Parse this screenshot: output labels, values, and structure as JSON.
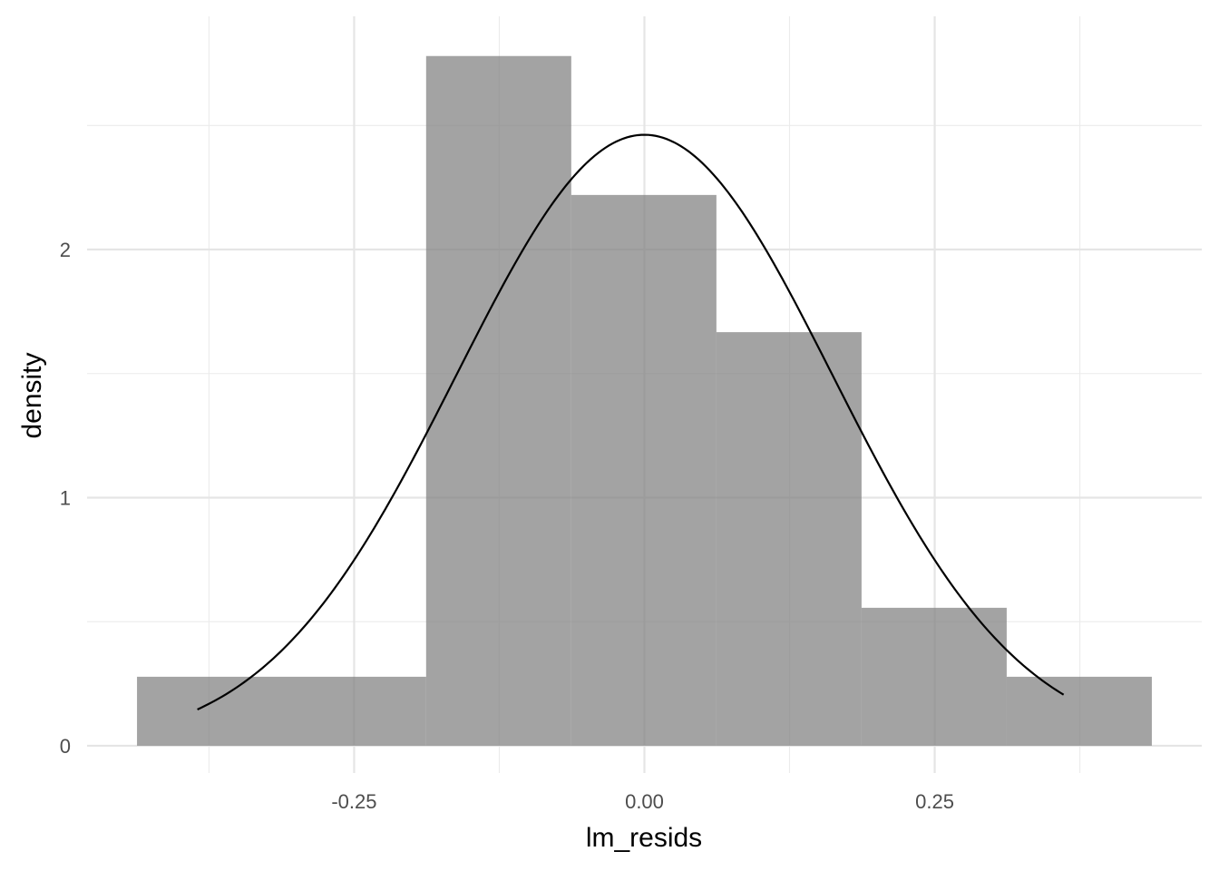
{
  "chart_data": {
    "type": "bar",
    "subtype": "histogram-with-normal-density-curve",
    "title": "",
    "xlabel": "lm_resids",
    "ylabel": "density",
    "xlim": [
      -0.48,
      0.48
    ],
    "ylim": [
      -0.11,
      2.94
    ],
    "x_major_ticks": [
      -0.25,
      0.0,
      0.25
    ],
    "x_tick_labels": [
      "-0.25",
      "0.00",
      "0.25"
    ],
    "x_minor_ticks": [
      -0.375,
      -0.125,
      0.125,
      0.375
    ],
    "y_major_ticks": [
      0,
      1,
      2
    ],
    "y_tick_labels": [
      "0",
      "1",
      "2"
    ],
    "y_minor_ticks": [
      0.5,
      1.5,
      2.5
    ],
    "grid": true,
    "bins": [
      {
        "x0": -0.437,
        "x1": -0.188,
        "density": 0.278
      },
      {
        "x0": -0.188,
        "x1": -0.063,
        "density": 2.78
      },
      {
        "x0": -0.063,
        "x1": 0.062,
        "density": 2.22
      },
      {
        "x0": 0.062,
        "x1": 0.187,
        "density": 1.667
      },
      {
        "x0": 0.187,
        "x1": 0.312,
        "density": 0.556
      },
      {
        "x0": 0.312,
        "x1": 0.437,
        "density": 0.278
      }
    ],
    "bar_color": "#808080",
    "bar_opacity": 0.72,
    "curve": {
      "distribution": "normal",
      "mean": 0.0,
      "sd": 0.162,
      "x_from": -0.385,
      "x_to": 0.361,
      "color": "#000000"
    }
  }
}
